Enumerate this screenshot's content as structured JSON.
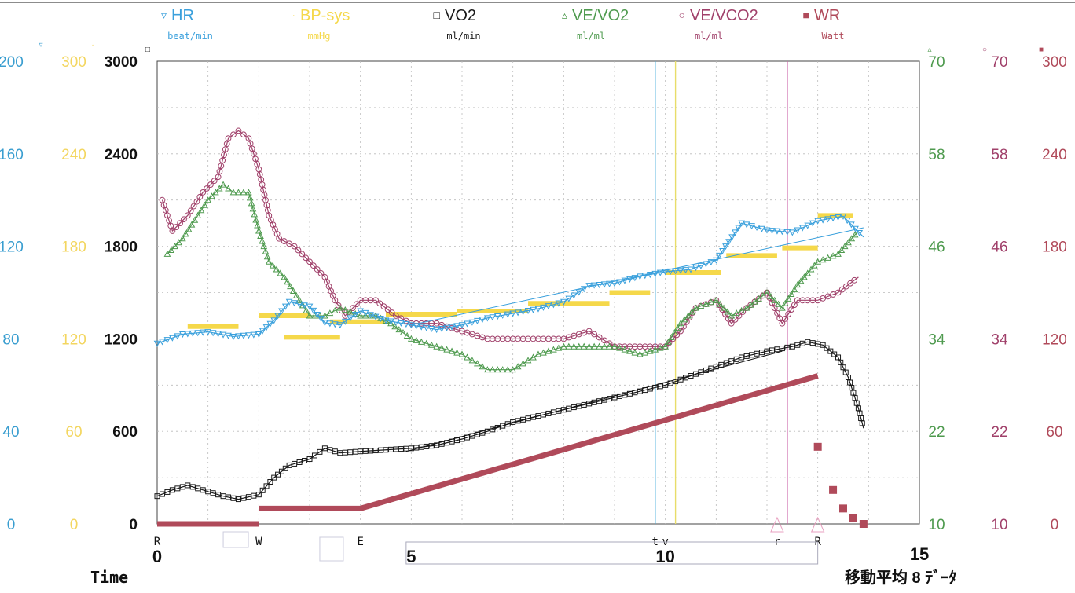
{
  "chart_data": {
    "type": "line",
    "xlabel": "Time",
    "footnote": "移動平均 8 ﾃﾞｰﾀ",
    "x_range": [
      0,
      15
    ],
    "x_ticks": [
      "0",
      "5",
      "10",
      "15"
    ],
    "grid": true,
    "legend_position": "top",
    "event_markers": [
      {
        "label": "R",
        "x": 0.0
      },
      {
        "label": "W",
        "x": 2.0
      },
      {
        "label": "E",
        "x": 4.0
      },
      {
        "label": "t",
        "x": 9.8
      },
      {
        "label": "v",
        "x": 10.0
      },
      {
        "label": "r",
        "x": 12.2
      },
      {
        "label": "R",
        "x": 13.0
      }
    ],
    "vertical_lines": [
      {
        "x": 9.8,
        "color": "#4aaedd"
      },
      {
        "x": 10.2,
        "color": "#e8dd6a"
      },
      {
        "x": 12.4,
        "color": "#cc66aa"
      }
    ],
    "axes": [
      {
        "id": "hr",
        "range": [
          0,
          200
        ],
        "ticks": [
          "0",
          "40",
          "80",
          "120",
          "160",
          "200"
        ],
        "color": "#3a9ed0"
      },
      {
        "id": "bp",
        "range": [
          0,
          300
        ],
        "ticks": [
          "0",
          "60",
          "120",
          "180",
          "240",
          "300"
        ],
        "color": "#f3d660"
      },
      {
        "id": "vo2",
        "range": [
          0,
          3000
        ],
        "ticks": [
          "0",
          "600",
          "1200",
          "1800",
          "2400",
          "3000"
        ],
        "color": "#111111"
      },
      {
        "id": "vevo2",
        "range": [
          10,
          70
        ],
        "ticks": [
          "10",
          "22",
          "34",
          "46",
          "58",
          "70"
        ],
        "color": "#4e9a4e"
      },
      {
        "id": "vevco2",
        "range": [
          10,
          70
        ],
        "ticks": [
          "10",
          "22",
          "34",
          "46",
          "58",
          "70"
        ],
        "color": "#a0406a"
      },
      {
        "id": "wr",
        "range": [
          0,
          300
        ],
        "ticks": [
          "0",
          "60",
          "120",
          "180",
          "240",
          "300"
        ],
        "color": "#b04a5a"
      }
    ],
    "series": [
      {
        "name": "HR",
        "unit": "beat/min",
        "axis": "hr",
        "color": "#3aa0dc",
        "marker": "▿",
        "x": [
          0.0,
          0.5,
          1.0,
          1.5,
          2.0,
          2.3,
          2.6,
          3.0,
          3.3,
          3.6,
          4.0,
          4.5,
          5.0,
          5.5,
          6.0,
          6.5,
          7.0,
          7.5,
          8.0,
          8.5,
          9.0,
          9.5,
          10.0,
          10.5,
          11.0,
          11.5,
          12.0,
          12.5,
          13.0,
          13.5,
          13.9
        ],
        "y": [
          78,
          82,
          83,
          81,
          82,
          88,
          96,
          94,
          87,
          86,
          92,
          88,
          86,
          84,
          86,
          89,
          91,
          93,
          96,
          103,
          104,
          107,
          109,
          110,
          114,
          130,
          127,
          126,
          131,
          133,
          124
        ]
      },
      {
        "name": "BP-sys",
        "unit": "mmHg",
        "axis": "bp",
        "color": "#f5d84a",
        "marker": "·",
        "steps": [
          [
            0.6,
            1.6,
            128
          ],
          [
            2.0,
            3.0,
            135
          ],
          [
            2.5,
            3.6,
            121
          ],
          [
            3.4,
            4.5,
            131
          ],
          [
            4.5,
            5.9,
            136
          ],
          [
            5.9,
            7.3,
            138
          ],
          [
            7.3,
            8.9,
            143
          ],
          [
            8.9,
            9.7,
            150
          ],
          [
            10.0,
            11.1,
            163
          ],
          [
            11.2,
            12.2,
            174
          ],
          [
            12.3,
            13.0,
            179
          ],
          [
            13.0,
            13.7,
            200
          ]
        ]
      },
      {
        "name": "VO2",
        "unit": "ml/min",
        "axis": "vo2",
        "color": "#1a1a1a",
        "marker": "□",
        "x": [
          0.0,
          0.3,
          0.6,
          1.0,
          1.3,
          1.6,
          2.0,
          2.3,
          2.6,
          3.0,
          3.3,
          3.6,
          4.0,
          4.5,
          5.0,
          5.5,
          6.0,
          6.5,
          7.0,
          7.5,
          8.0,
          8.5,
          9.0,
          9.5,
          10.0,
          10.5,
          11.0,
          11.5,
          12.0,
          12.5,
          12.8,
          13.1,
          13.4,
          13.6,
          13.8,
          13.9
        ],
        "y": [
          180,
          220,
          250,
          210,
          180,
          160,
          190,
          300,
          380,
          420,
          490,
          460,
          470,
          480,
          490,
          510,
          550,
          600,
          660,
          700,
          740,
          780,
          820,
          860,
          900,
          960,
          1020,
          1080,
          1120,
          1150,
          1180,
          1160,
          1080,
          950,
          750,
          620
        ]
      },
      {
        "name": "VE/VO2",
        "unit": "ml/ml",
        "axis": "vevo2",
        "color": "#4e9a4e",
        "marker": "▵",
        "x": [
          0.2,
          0.5,
          0.8,
          1.0,
          1.3,
          1.5,
          1.8,
          2.0,
          2.2,
          2.5,
          2.8,
          3.0,
          3.3,
          3.6,
          4.0,
          4.3,
          4.6,
          5.0,
          5.5,
          6.0,
          6.5,
          7.0,
          7.5,
          8.0,
          8.5,
          9.0,
          9.5,
          10.0,
          10.3,
          10.6,
          11.0,
          11.3,
          11.6,
          12.0,
          12.3,
          12.6,
          13.0,
          13.4,
          13.8
        ],
        "y": [
          45,
          47,
          50,
          52,
          54,
          53,
          53,
          48,
          44,
          42,
          39,
          37,
          37,
          38,
          37,
          37,
          36,
          34,
          33,
          32,
          30,
          30,
          32,
          33,
          33,
          33,
          32,
          33,
          36,
          38,
          39,
          37,
          38,
          40,
          38,
          41,
          44,
          45,
          48
        ]
      },
      {
        "name": "VE/VCO2",
        "unit": "ml/ml",
        "axis": "vevco2",
        "color": "#a0406a",
        "marker": "○",
        "x": [
          0.1,
          0.3,
          0.6,
          0.9,
          1.2,
          1.4,
          1.6,
          1.8,
          2.0,
          2.2,
          2.4,
          2.7,
          3.0,
          3.3,
          3.5,
          3.7,
          4.0,
          4.3,
          4.7,
          5.0,
          5.5,
          6.0,
          6.5,
          7.0,
          7.5,
          8.0,
          8.5,
          9.0,
          9.5,
          10.0,
          10.3,
          10.6,
          11.0,
          11.3,
          11.6,
          12.0,
          12.3,
          12.6,
          13.0,
          13.4,
          13.8
        ],
        "y": [
          52,
          48,
          50,
          53,
          55,
          60,
          61,
          60,
          56,
          50,
          47,
          46,
          44,
          42,
          39,
          37,
          39,
          39,
          37,
          36,
          36,
          35,
          34,
          34,
          34,
          34,
          35,
          33,
          33,
          33,
          35,
          38,
          39,
          36,
          38,
          40,
          36,
          39,
          39,
          40,
          42
        ]
      },
      {
        "name": "WR",
        "unit": "Watt",
        "axis": "wr",
        "color": "#b04a5a",
        "marker": "■",
        "x": [
          0.0,
          2.0,
          2.0,
          4.0,
          13.0,
          13.0,
          13.3,
          13.5,
          13.7,
          13.9
        ],
        "y": [
          0,
          0,
          10,
          10,
          96,
          50,
          22,
          10,
          4,
          0
        ]
      }
    ]
  }
}
